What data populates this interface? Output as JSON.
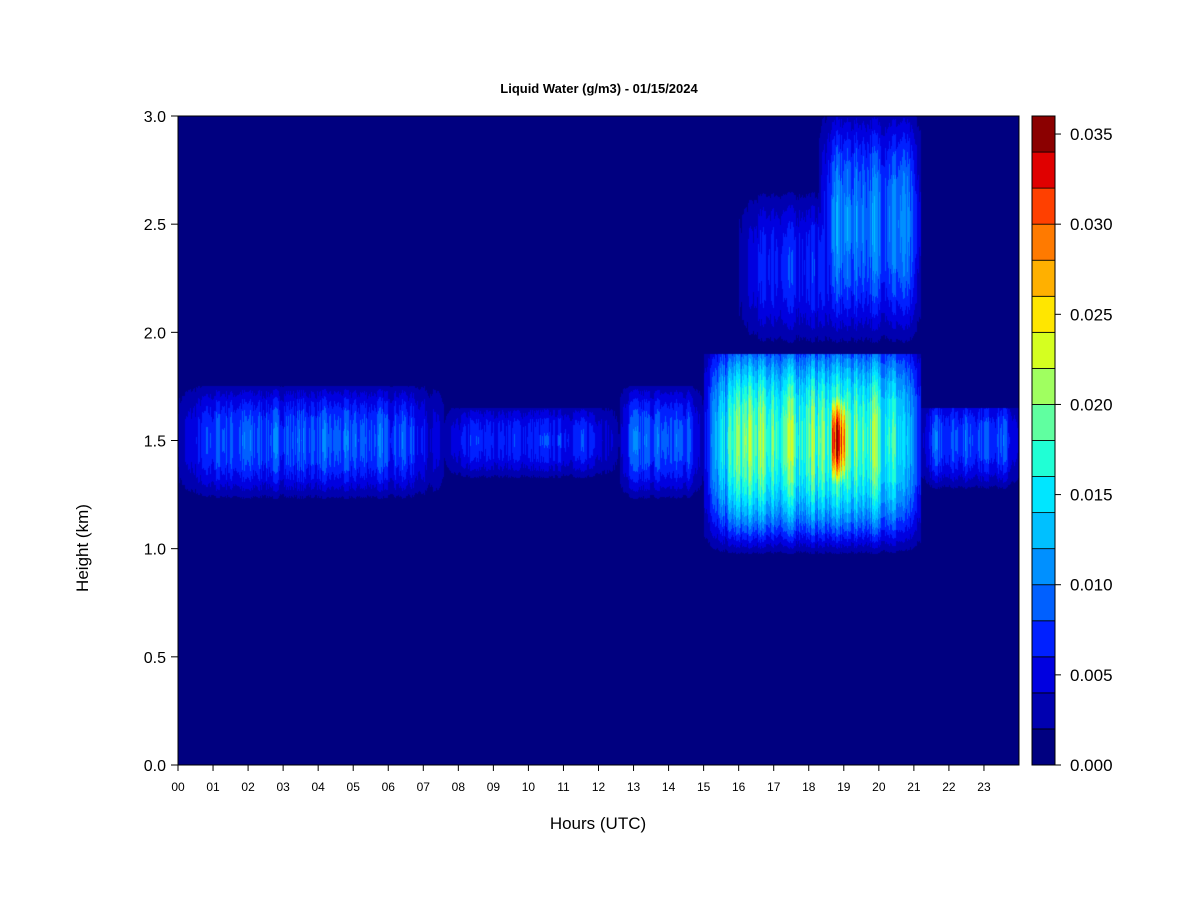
{
  "chart_data": {
    "type": "heatmap",
    "title": "Liquid Water (g/m3) - 01/15/2024",
    "xlabel": "Hours (UTC)",
    "ylabel": "Height (km)",
    "x_ticks": [
      "00",
      "01",
      "02",
      "03",
      "04",
      "05",
      "06",
      "07",
      "08",
      "09",
      "10",
      "11",
      "12",
      "13",
      "14",
      "15",
      "16",
      "17",
      "18",
      "19",
      "20",
      "21",
      "22",
      "23"
    ],
    "y_ticks": [
      "0.0",
      "0.5",
      "1.0",
      "1.5",
      "2.0",
      "2.5",
      "3.0"
    ],
    "xlim": [
      0,
      24
    ],
    "ylim": [
      0,
      3.0
    ],
    "colorbar": {
      "ticks": [
        "0.000",
        "0.005",
        "0.010",
        "0.015",
        "0.020",
        "0.025",
        "0.030",
        "0.035"
      ],
      "range": [
        0,
        0.036
      ],
      "levels": 18,
      "colors": [
        "#000080",
        "#0000B0",
        "#0000E0",
        "#0020FF",
        "#0060FF",
        "#0090FF",
        "#00C0FF",
        "#00E6FF",
        "#20FFD5",
        "#60FFA0",
        "#A0FF60",
        "#D5FF20",
        "#FFE600",
        "#FFB000",
        "#FF7A00",
        "#FF4000",
        "#E00000",
        "#8B0000"
      ]
    },
    "features": [
      {
        "x": [
          0.0,
          7.6
        ],
        "y": [
          1.2,
          1.75
        ],
        "peak_lwc": 0.01,
        "peak_height": 1.5
      },
      {
        "x": [
          7.6,
          12.6
        ],
        "y": [
          1.3,
          1.65
        ],
        "peak_lwc": 0.008,
        "peak_height": 1.5
      },
      {
        "x": [
          12.6,
          15.0
        ],
        "y": [
          1.2,
          1.75
        ],
        "peak_lwc": 0.01,
        "peak_height": 1.5
      },
      {
        "x": [
          15.0,
          21.2
        ],
        "y": [
          0.95,
          1.9
        ],
        "peak_lwc": 0.022,
        "peak_height": 1.5
      },
      {
        "x": [
          18.6,
          19.1
        ],
        "y": [
          1.2,
          1.75
        ],
        "peak_lwc": 0.035,
        "peak_height": 1.5
      },
      {
        "x": [
          16.0,
          21.2
        ],
        "y": [
          1.9,
          2.7
        ],
        "peak_lwc": 0.008,
        "peak_height": 2.3
      },
      {
        "x": [
          18.3,
          21.2
        ],
        "y": [
          1.9,
          3.0
        ],
        "peak_lwc": 0.012,
        "peak_height": 2.5
      },
      {
        "x": [
          21.2,
          24.0
        ],
        "y": [
          1.25,
          1.65
        ],
        "peak_lwc": 0.01,
        "peak_height": 1.5
      }
    ],
    "grid": false,
    "legend": "colorbar-right"
  }
}
